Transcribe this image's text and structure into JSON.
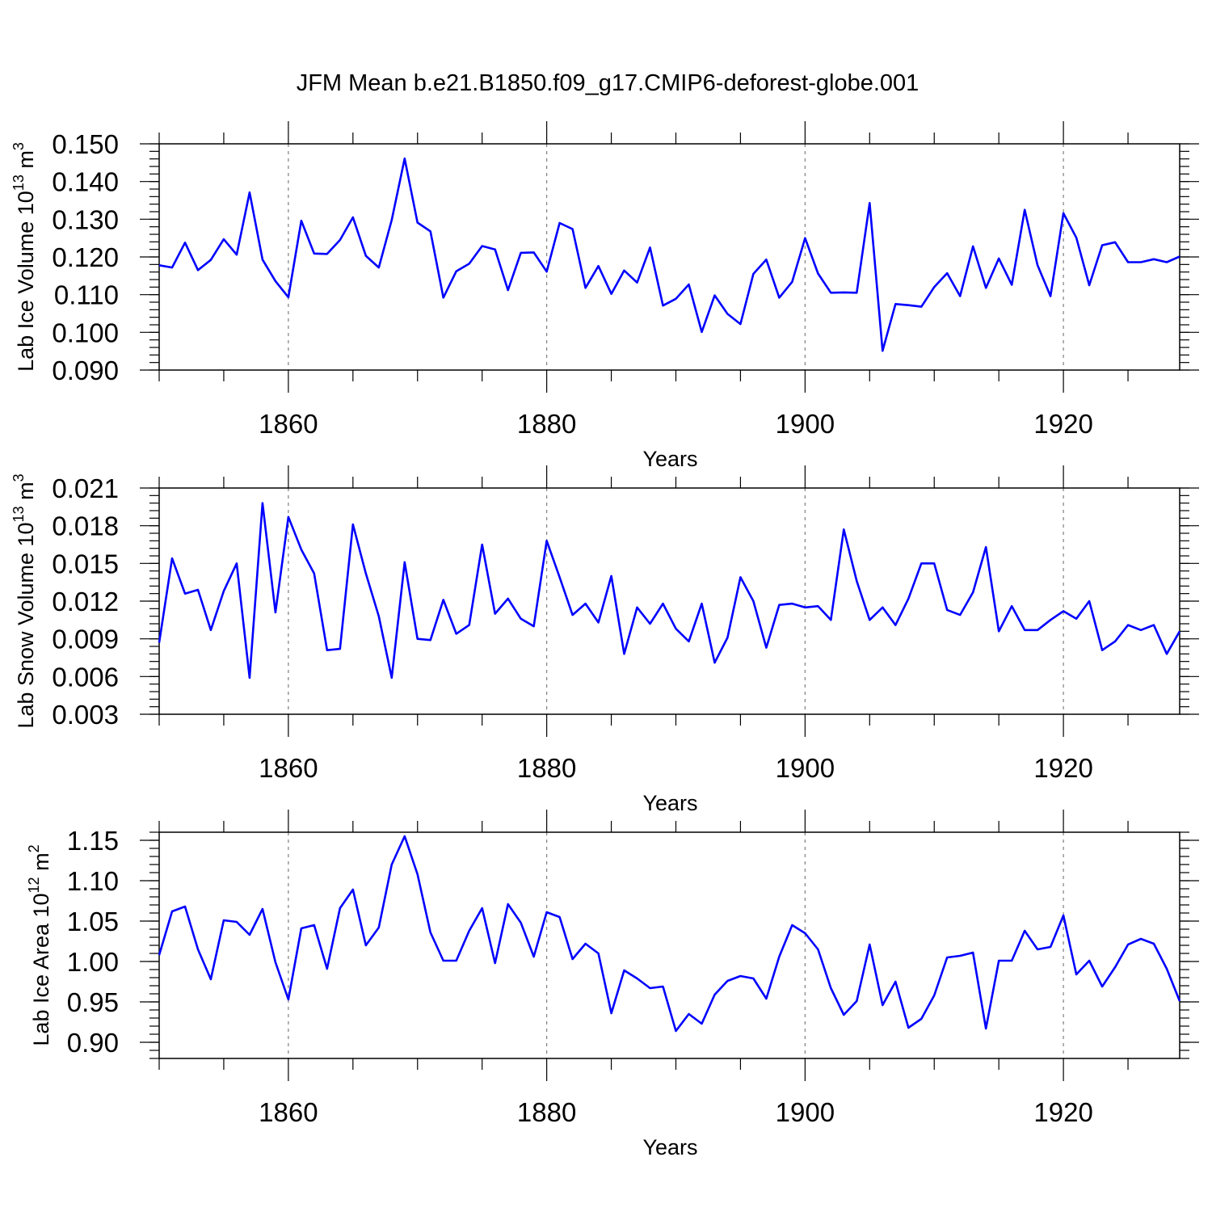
{
  "title": "JFM Mean b.e21.B1850.f09_g17.CMIP6-deforest-globe.001",
  "colors": {
    "line": "#0000ff",
    "axis": "#000000",
    "grid": "#808080"
  },
  "chart_data": [
    {
      "type": "line",
      "ylabel_main": "Lab Ice Volume 10",
      "ylabel_exp": "13",
      "ylabel_unit": " m",
      "ylabel_unit_exp": "3",
      "xlabel": "Years",
      "xlim": [
        1850,
        1929
      ],
      "ylim": [
        0.09,
        0.15
      ],
      "xticks": [
        "1860",
        "1880",
        "1900",
        "1920"
      ],
      "yticks": [
        "0.090",
        "0.100",
        "0.110",
        "0.120",
        "0.130",
        "0.140",
        "0.150"
      ],
      "x": [
        1850,
        1851,
        1852,
        1853,
        1854,
        1855,
        1856,
        1857,
        1858,
        1859,
        1860,
        1861,
        1862,
        1863,
        1864,
        1865,
        1866,
        1867,
        1868,
        1869,
        1870,
        1871,
        1872,
        1873,
        1874,
        1875,
        1876,
        1877,
        1878,
        1879,
        1880,
        1881,
        1882,
        1883,
        1884,
        1885,
        1886,
        1887,
        1888,
        1889,
        1890,
        1891,
        1892,
        1893,
        1894,
        1895,
        1896,
        1897,
        1898,
        1899,
        1900,
        1901,
        1902,
        1903,
        1904,
        1905,
        1906,
        1907,
        1908,
        1909,
        1910,
        1911,
        1912,
        1913,
        1914,
        1915,
        1916,
        1917,
        1918,
        1919,
        1920,
        1921,
        1922,
        1923,
        1924,
        1925,
        1926,
        1927,
        1928,
        1929
      ],
      "values": [
        0.1178,
        0.1172,
        0.1238,
        0.1165,
        0.1192,
        0.1247,
        0.1206,
        0.1371,
        0.1193,
        0.1136,
        0.1093,
        0.1296,
        0.1209,
        0.1208,
        0.1245,
        0.1305,
        0.1203,
        0.1172,
        0.1298,
        0.1461,
        0.1291,
        0.1268,
        0.1092,
        0.1162,
        0.1182,
        0.1229,
        0.122,
        0.1112,
        0.1211,
        0.1212,
        0.1161,
        0.129,
        0.1274,
        0.1118,
        0.1176,
        0.1102,
        0.1164,
        0.1132,
        0.1225,
        0.1071,
        0.1089,
        0.1127,
        0.1001,
        0.1098,
        0.1049,
        0.1022,
        0.1155,
        0.1193,
        0.1092,
        0.1134,
        0.125,
        0.1156,
        0.1105,
        0.1106,
        0.1105,
        0.1343,
        0.0951,
        0.1075,
        0.1072,
        0.1068,
        0.112,
        0.1157,
        0.1096,
        0.1228,
        0.1118,
        0.1196,
        0.1126,
        0.1325,
        0.1178,
        0.1096,
        0.1316,
        0.1251,
        0.1125,
        0.1231,
        0.1239,
        0.1186,
        0.1186,
        0.1194,
        0.1186,
        0.1201
      ]
    },
    {
      "type": "line",
      "ylabel_main": "Lab Snow Volume 10",
      "ylabel_exp": "13",
      "ylabel_unit": " m",
      "ylabel_unit_exp": "3",
      "xlabel": "Years",
      "xlim": [
        1850,
        1929
      ],
      "ylim": [
        0.003,
        0.021
      ],
      "xticks": [
        "1860",
        "1880",
        "1900",
        "1920"
      ],
      "yticks": [
        "0.003",
        "0.006",
        "0.009",
        "0.012",
        "0.015",
        "0.018",
        "0.021"
      ],
      "x": [
        1850,
        1851,
        1852,
        1853,
        1854,
        1855,
        1856,
        1857,
        1858,
        1859,
        1860,
        1861,
        1862,
        1863,
        1864,
        1865,
        1866,
        1867,
        1868,
        1869,
        1870,
        1871,
        1872,
        1873,
        1874,
        1875,
        1876,
        1877,
        1878,
        1879,
        1880,
        1881,
        1882,
        1883,
        1884,
        1885,
        1886,
        1887,
        1888,
        1889,
        1890,
        1891,
        1892,
        1893,
        1894,
        1895,
        1896,
        1897,
        1898,
        1899,
        1900,
        1901,
        1902,
        1903,
        1904,
        1905,
        1906,
        1907,
        1908,
        1909,
        1910,
        1911,
        1912,
        1913,
        1914,
        1915,
        1916,
        1917,
        1918,
        1919,
        1920,
        1921,
        1922,
        1923,
        1924,
        1925,
        1926,
        1927,
        1928,
        1929
      ],
      "values": [
        0.0087,
        0.0154,
        0.0126,
        0.0129,
        0.0097,
        0.0128,
        0.015,
        0.0059,
        0.0198,
        0.0111,
        0.0187,
        0.0161,
        0.0142,
        0.0081,
        0.0082,
        0.0181,
        0.0142,
        0.0108,
        0.0059,
        0.0151,
        0.009,
        0.0089,
        0.0121,
        0.0094,
        0.0101,
        0.0165,
        0.011,
        0.0122,
        0.0106,
        0.01,
        0.0168,
        0.0139,
        0.0109,
        0.0118,
        0.0103,
        0.014,
        0.0078,
        0.0115,
        0.0102,
        0.0118,
        0.0098,
        0.0088,
        0.0118,
        0.0071,
        0.0091,
        0.0139,
        0.012,
        0.0083,
        0.0117,
        0.0118,
        0.0115,
        0.0116,
        0.0105,
        0.0177,
        0.0136,
        0.0105,
        0.0115,
        0.0101,
        0.0122,
        0.015,
        0.015,
        0.0113,
        0.0109,
        0.0127,
        0.0163,
        0.0096,
        0.0116,
        0.0097,
        0.0097,
        0.0105,
        0.0112,
        0.0106,
        0.012,
        0.0081,
        0.0088,
        0.0101,
        0.0097,
        0.0101,
        0.0078,
        0.0096
      ]
    },
    {
      "type": "line",
      "ylabel_main": "Lab Ice Area 10",
      "ylabel_exp": "12",
      "ylabel_unit": " m",
      "ylabel_unit_exp": "2",
      "xlabel": "Years",
      "xlim": [
        1850,
        1929
      ],
      "ylim": [
        0.88,
        1.16
      ],
      "xticks": [
        "1860",
        "1880",
        "1900",
        "1920"
      ],
      "yticks": [
        "0.90",
        "0.95",
        "1.00",
        "1.05",
        "1.10",
        "1.15"
      ],
      "x": [
        1850,
        1851,
        1852,
        1853,
        1854,
        1855,
        1856,
        1857,
        1858,
        1859,
        1860,
        1861,
        1862,
        1863,
        1864,
        1865,
        1866,
        1867,
        1868,
        1869,
        1870,
        1871,
        1872,
        1873,
        1874,
        1875,
        1876,
        1877,
        1878,
        1879,
        1880,
        1881,
        1882,
        1883,
        1884,
        1885,
        1886,
        1887,
        1888,
        1889,
        1890,
        1891,
        1892,
        1893,
        1894,
        1895,
        1896,
        1897,
        1898,
        1899,
        1900,
        1901,
        1902,
        1903,
        1904,
        1905,
        1906,
        1907,
        1908,
        1909,
        1910,
        1911,
        1912,
        1913,
        1914,
        1915,
        1916,
        1917,
        1918,
        1919,
        1920,
        1921,
        1922,
        1923,
        1924,
        1925,
        1926,
        1927,
        1928,
        1929
      ],
      "values": [
        1.008,
        1.062,
        1.068,
        1.015,
        0.978,
        1.051,
        1.049,
        1.033,
        1.065,
        0.999,
        0.953,
        1.041,
        1.045,
        0.991,
        1.066,
        1.089,
        1.02,
        1.042,
        1.12,
        1.155,
        1.108,
        1.036,
        1.001,
        1.001,
        1.038,
        1.066,
        0.998,
        1.071,
        1.048,
        1.006,
        1.061,
        1.055,
        1.003,
        1.022,
        1.01,
        0.936,
        0.989,
        0.979,
        0.967,
        0.969,
        0.914,
        0.935,
        0.923,
        0.959,
        0.976,
        0.982,
        0.979,
        0.954,
        1.006,
        1.045,
        1.035,
        1.015,
        0.967,
        0.934,
        0.951,
        1.021,
        0.946,
        0.975,
        0.918,
        0.929,
        0.958,
        1.005,
        1.007,
        1.011,
        0.917,
        1.001,
        1.001,
        1.038,
        1.015,
        1.018,
        1.057,
        0.984,
        1.001,
        0.969,
        0.993,
        1.021,
        1.028,
        1.022,
        0.991,
        0.951
      ]
    }
  ]
}
